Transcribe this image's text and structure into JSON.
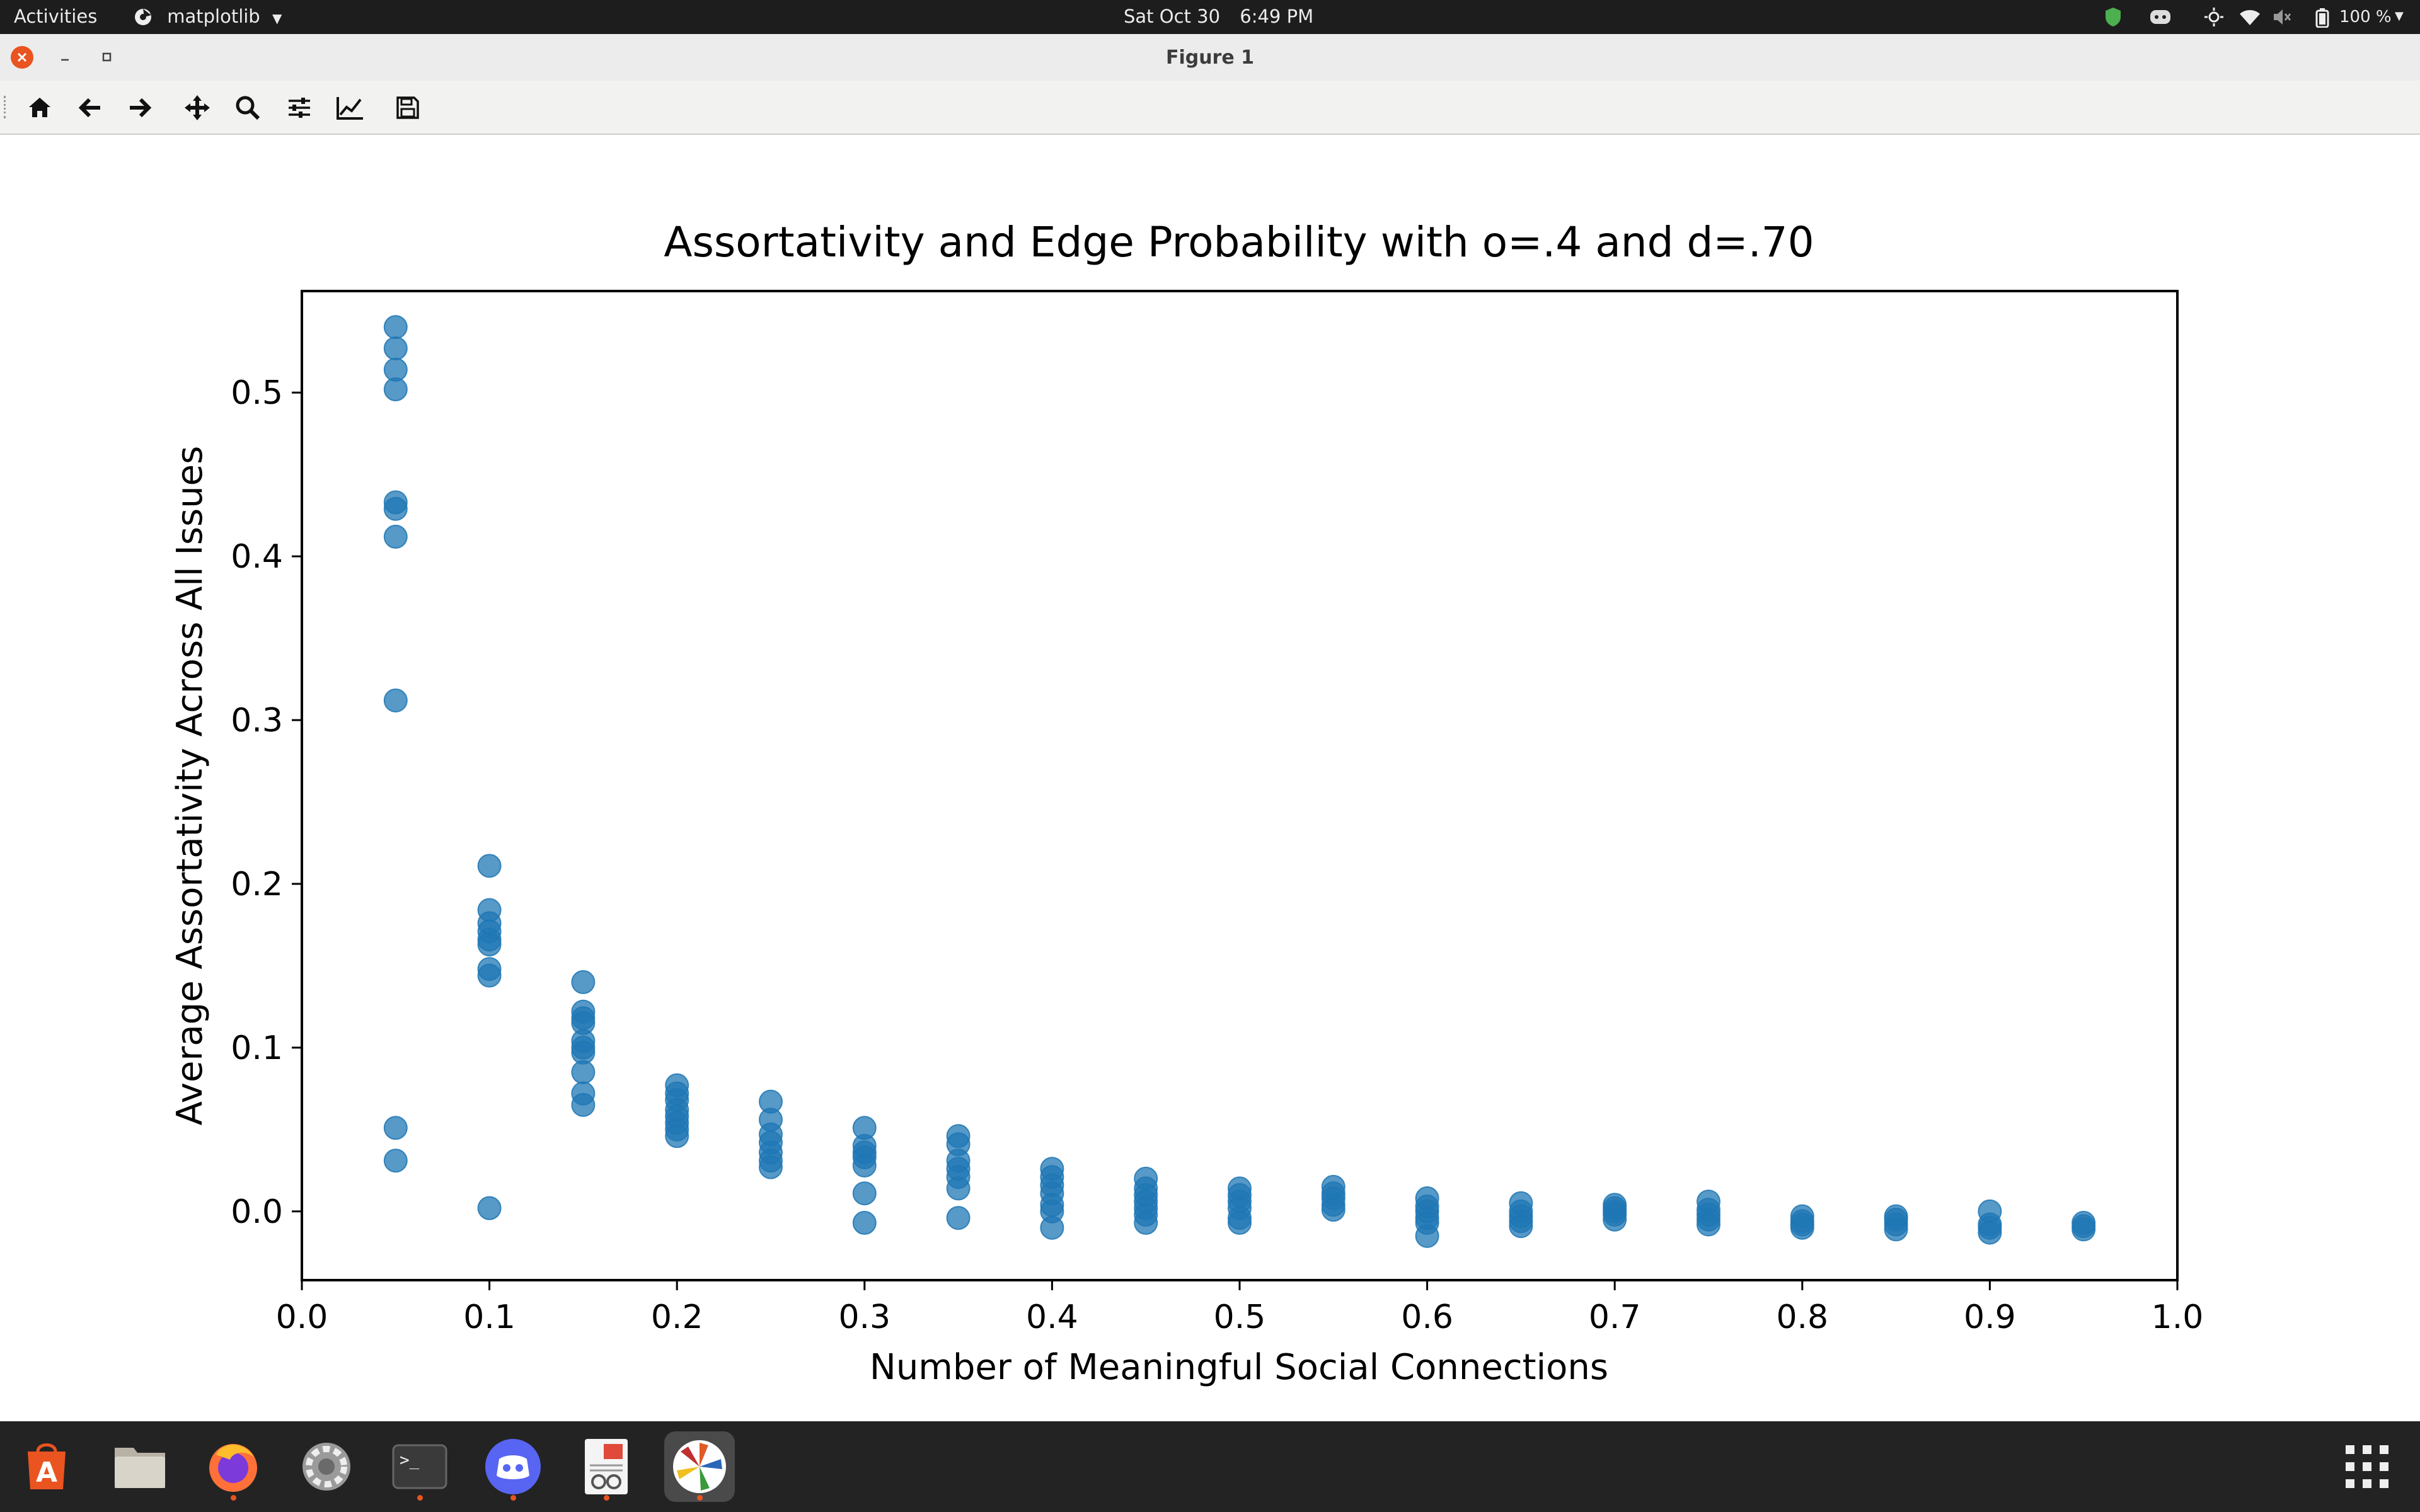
{
  "topbar": {
    "activities": "Activities",
    "app_name": "matplotlib",
    "date": "Sat Oct 30",
    "time": "6:49 PM",
    "battery": "100 %"
  },
  "window": {
    "title": "Figure 1"
  },
  "toolbar": {
    "buttons": [
      "home-icon",
      "back-arrow-icon",
      "forward-arrow-icon",
      "pan-icon",
      "zoom-icon",
      "configure-subplots-icon",
      "edit-axis-icon",
      "save-icon"
    ]
  },
  "dock": {
    "apps": [
      "ubuntu-software",
      "files",
      "firefox",
      "settings",
      "terminal",
      "discord",
      "document-viewer",
      "matplotlib-figure"
    ]
  },
  "colors": {
    "marker": "#1f77b4",
    "topbar": "#1d1d1d",
    "dock": "#232323",
    "accent": "#e95420"
  },
  "chart_data": {
    "type": "scatter",
    "title": "Assortativity and Edge Probability with o=.4 and d=.70",
    "xlabel": "Number of Meaningful Social Connections",
    "ylabel": "Average Assortativity Across All Issues",
    "xlim": [
      0.0,
      1.0
    ],
    "ylim": [
      -0.042,
      0.562
    ],
    "xticks": [
      "0.0",
      "0.1",
      "0.2",
      "0.3",
      "0.4",
      "0.5",
      "0.6",
      "0.7",
      "0.8",
      "0.9",
      "1.0"
    ],
    "yticks": [
      "0.0",
      "0.1",
      "0.2",
      "0.3",
      "0.4",
      "0.5"
    ],
    "grid": false,
    "legend": "none",
    "series": [
      {
        "points": [
          [
            0.05,
            0.54
          ],
          [
            0.05,
            0.527
          ],
          [
            0.05,
            0.514
          ],
          [
            0.05,
            0.502
          ],
          [
            0.05,
            0.433
          ],
          [
            0.05,
            0.429
          ],
          [
            0.05,
            0.412
          ],
          [
            0.05,
            0.312
          ],
          [
            0.05,
            0.051
          ],
          [
            0.05,
            0.031
          ],
          [
            0.1,
            0.211
          ],
          [
            0.1,
            0.184
          ],
          [
            0.1,
            0.176
          ],
          [
            0.1,
            0.171
          ],
          [
            0.1,
            0.166
          ],
          [
            0.1,
            0.163
          ],
          [
            0.1,
            0.148
          ],
          [
            0.1,
            0.144
          ],
          [
            0.1,
            0.002
          ],
          [
            0.15,
            0.14
          ],
          [
            0.15,
            0.122
          ],
          [
            0.15,
            0.118
          ],
          [
            0.15,
            0.115
          ],
          [
            0.15,
            0.104
          ],
          [
            0.15,
            0.1
          ],
          [
            0.15,
            0.097
          ],
          [
            0.15,
            0.085
          ],
          [
            0.15,
            0.072
          ],
          [
            0.15,
            0.065
          ],
          [
            0.2,
            0.077
          ],
          [
            0.2,
            0.072
          ],
          [
            0.2,
            0.068
          ],
          [
            0.2,
            0.062
          ],
          [
            0.2,
            0.058
          ],
          [
            0.2,
            0.054
          ],
          [
            0.2,
            0.05
          ],
          [
            0.2,
            0.046
          ],
          [
            0.25,
            0.067
          ],
          [
            0.25,
            0.056
          ],
          [
            0.25,
            0.047
          ],
          [
            0.25,
            0.042
          ],
          [
            0.25,
            0.036
          ],
          [
            0.25,
            0.031
          ],
          [
            0.25,
            0.027
          ],
          [
            0.3,
            0.051
          ],
          [
            0.3,
            0.04
          ],
          [
            0.3,
            0.036
          ],
          [
            0.3,
            0.033
          ],
          [
            0.3,
            0.028
          ],
          [
            0.3,
            0.011
          ],
          [
            0.3,
            -0.007
          ],
          [
            0.35,
            0.046
          ],
          [
            0.35,
            0.041
          ],
          [
            0.35,
            0.031
          ],
          [
            0.35,
            0.026
          ],
          [
            0.35,
            0.021
          ],
          [
            0.35,
            0.014
          ],
          [
            0.35,
            -0.004
          ],
          [
            0.4,
            0.026
          ],
          [
            0.4,
            0.021
          ],
          [
            0.4,
            0.016
          ],
          [
            0.4,
            0.011
          ],
          [
            0.4,
            0.004
          ],
          [
            0.4,
            0.0
          ],
          [
            0.4,
            -0.01
          ],
          [
            0.45,
            0.02
          ],
          [
            0.45,
            0.014
          ],
          [
            0.45,
            0.01
          ],
          [
            0.45,
            0.006
          ],
          [
            0.45,
            0.002
          ],
          [
            0.45,
            -0.002
          ],
          [
            0.45,
            -0.007
          ],
          [
            0.5,
            0.014
          ],
          [
            0.5,
            0.01
          ],
          [
            0.5,
            0.006
          ],
          [
            0.5,
            0.002
          ],
          [
            0.5,
            -0.004
          ],
          [
            0.5,
            -0.007
          ],
          [
            0.55,
            0.015
          ],
          [
            0.55,
            0.011
          ],
          [
            0.55,
            0.008
          ],
          [
            0.55,
            0.004
          ],
          [
            0.55,
            0.001
          ],
          [
            0.6,
            0.008
          ],
          [
            0.6,
            0.003
          ],
          [
            0.6,
            0.0
          ],
          [
            0.6,
            -0.004
          ],
          [
            0.6,
            -0.007
          ],
          [
            0.6,
            -0.015
          ],
          [
            0.65,
            0.005
          ],
          [
            0.65,
            0.0
          ],
          [
            0.65,
            -0.003
          ],
          [
            0.65,
            -0.006
          ],
          [
            0.65,
            -0.009
          ],
          [
            0.7,
            0.004
          ],
          [
            0.7,
            0.002
          ],
          [
            0.7,
            0.0
          ],
          [
            0.7,
            -0.002
          ],
          [
            0.7,
            -0.005
          ],
          [
            0.75,
            0.006
          ],
          [
            0.75,
            0.001
          ],
          [
            0.75,
            -0.002
          ],
          [
            0.75,
            -0.005
          ],
          [
            0.75,
            -0.008
          ],
          [
            0.8,
            -0.003
          ],
          [
            0.8,
            -0.006
          ],
          [
            0.8,
            -0.008
          ],
          [
            0.8,
            -0.01
          ],
          [
            0.85,
            -0.003
          ],
          [
            0.85,
            -0.005
          ],
          [
            0.85,
            -0.008
          ],
          [
            0.85,
            -0.011
          ],
          [
            0.9,
            0.0
          ],
          [
            0.9,
            -0.008
          ],
          [
            0.9,
            -0.01
          ],
          [
            0.9,
            -0.013
          ],
          [
            0.95,
            -0.007
          ],
          [
            0.95,
            -0.009
          ],
          [
            0.95,
            -0.011
          ]
        ]
      }
    ]
  }
}
